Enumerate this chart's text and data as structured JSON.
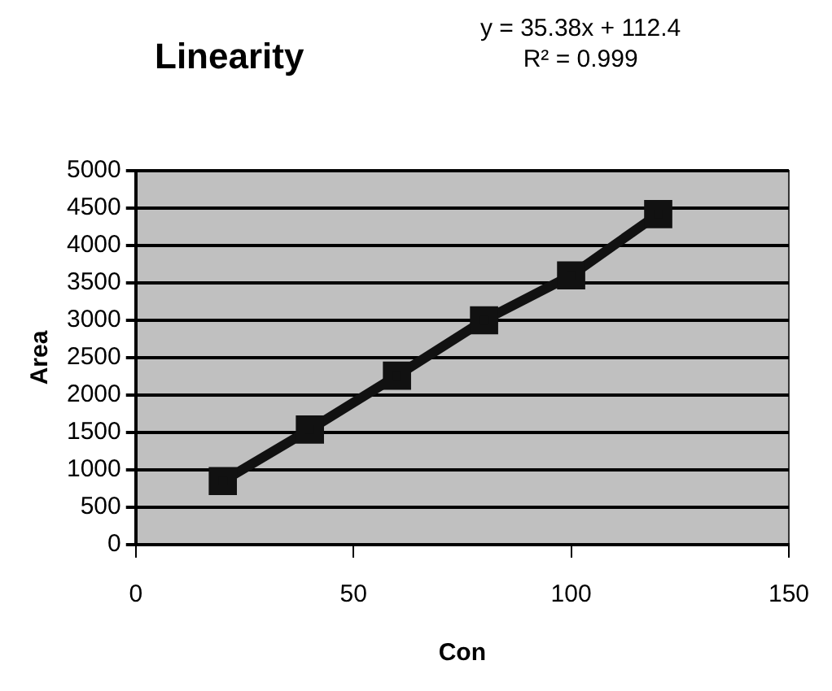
{
  "chart_data": {
    "type": "line",
    "title": "Linearity",
    "xlabel": "Con",
    "ylabel": "Area",
    "annotations": [
      "y = 35.38x  + 112.4",
      "R² = 0.999"
    ],
    "x": [
      20,
      40,
      60,
      80,
      100,
      120
    ],
    "series": [
      {
        "color": "#111111",
        "values": [
          850,
          1540,
          2260,
          3000,
          3600,
          4420
        ]
      }
    ],
    "xlim": [
      0,
      150
    ],
    "xticks": [
      0,
      50,
      100,
      150
    ],
    "ylim": [
      0,
      5000
    ],
    "yticks": [
      0,
      500,
      1000,
      1500,
      2000,
      2500,
      3000,
      3500,
      4000,
      4500,
      5000
    ],
    "grid": "y",
    "legend": false,
    "marker": "square",
    "line_style": "solid"
  }
}
